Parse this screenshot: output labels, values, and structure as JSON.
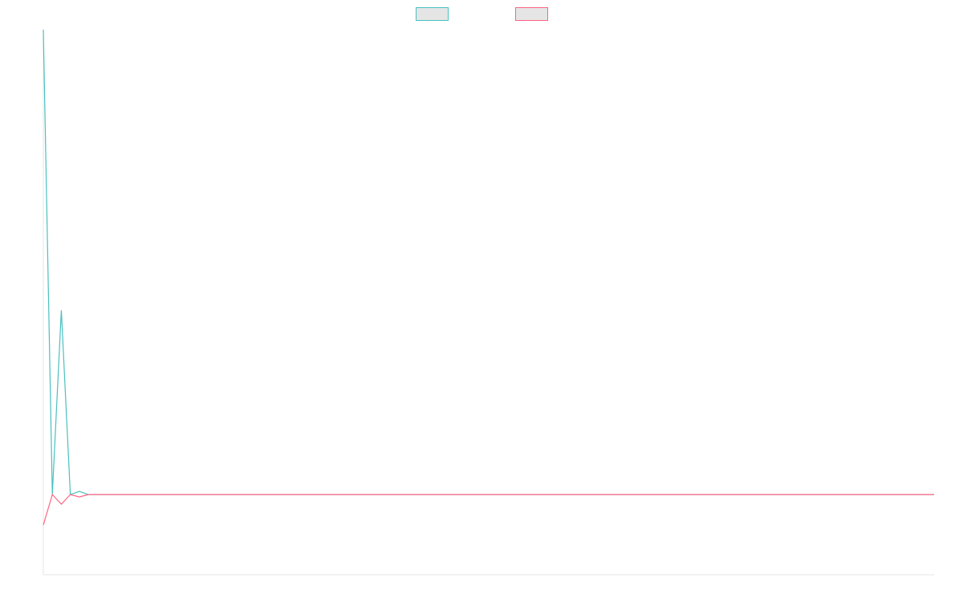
{
  "chart_data": {
    "type": "line",
    "title": "",
    "xlabel": "",
    "ylabel": "",
    "x": [
      0,
      1,
      2,
      3,
      4,
      5,
      6,
      7,
      8,
      9,
      10,
      11,
      12,
      13,
      14,
      15,
      16,
      17,
      18,
      19,
      20,
      21,
      22,
      23,
      24,
      25,
      26,
      27,
      28,
      29,
      30,
      31,
      32,
      33,
      34,
      35,
      36,
      37,
      38,
      39,
      40,
      41,
      42,
      43,
      44,
      45,
      46,
      47,
      48,
      49,
      50,
      51,
      52,
      53,
      54,
      55,
      56,
      57,
      58,
      59,
      60,
      61,
      62,
      63,
      64,
      65,
      66,
      67,
      68,
      69,
      70,
      71,
      72,
      73,
      74,
      75,
      76,
      77,
      78,
      79,
      80,
      81,
      82,
      83,
      84,
      85,
      86,
      87,
      88,
      89,
      90,
      91,
      92,
      93,
      94,
      95,
      96,
      97,
      98,
      99
    ],
    "ylim": [
      -10,
      58
    ],
    "legend": "top-center",
    "grid": false,
    "series": [
      {
        "color": "#4bc0c0",
        "fill": "#e5e5e5",
        "values": [
          58,
          0,
          23,
          0,
          0.4,
          0,
          0,
          0,
          0,
          0,
          0,
          0,
          0,
          0,
          0,
          0,
          0,
          0,
          0,
          0,
          0,
          0,
          0,
          0,
          0,
          0,
          0,
          0,
          0,
          0,
          0,
          0,
          0,
          0,
          0,
          0,
          0,
          0,
          0,
          0,
          0,
          0,
          0,
          0,
          0,
          0,
          0,
          0,
          0,
          0,
          0,
          0,
          0,
          0,
          0,
          0,
          0,
          0,
          0,
          0,
          0,
          0,
          0,
          0,
          0,
          0,
          0,
          0,
          0,
          0,
          0,
          0,
          0,
          0,
          0,
          0,
          0,
          0,
          0,
          0,
          0,
          0,
          0,
          0,
          0,
          0,
          0,
          0,
          0,
          0,
          0,
          0,
          0,
          0,
          0,
          0,
          0,
          0,
          0,
          0
        ]
      },
      {
        "color": "#ff6384",
        "fill": "#e5e5e5",
        "values": [
          -3.8,
          0,
          -1.2,
          0,
          -0.3,
          0,
          0,
          0,
          0,
          0,
          0,
          0,
          0,
          0,
          0,
          0,
          0,
          0,
          0,
          0,
          0,
          0,
          0,
          0,
          0,
          0,
          0,
          0,
          0,
          0,
          0,
          0,
          0,
          0,
          0,
          0,
          0,
          0,
          0,
          0,
          0,
          0,
          0,
          0,
          0,
          0,
          0,
          0,
          0,
          0,
          0,
          0,
          0,
          0,
          0,
          0,
          0,
          0,
          0,
          0,
          0,
          0,
          0,
          0,
          0,
          0,
          0,
          0,
          0,
          0,
          0,
          0,
          0,
          0,
          0,
          0,
          0,
          0,
          0,
          0,
          0,
          0,
          0,
          0,
          0,
          0,
          0,
          0,
          0,
          0,
          0,
          0,
          0,
          0,
          0,
          0,
          0,
          0,
          0,
          0
        ]
      }
    ]
  }
}
